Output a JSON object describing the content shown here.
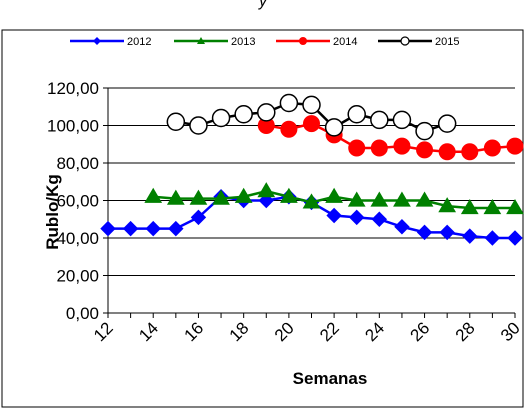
{
  "chart_data": {
    "type": "line",
    "title": "y",
    "title_note": "partially visible at top edge: \"...y ... , g...\"",
    "xlabel": "Semanas",
    "ylabel": "Rublo/Kg",
    "xlim": [
      12,
      30
    ],
    "ylim": [
      0,
      120
    ],
    "x_ticks": [
      12,
      14,
      16,
      18,
      20,
      22,
      24,
      26,
      28,
      30
    ],
    "x_tick_labels": [
      "12",
      "14",
      "16",
      "18",
      "20",
      "22",
      "24",
      "26",
      "28",
      "30"
    ],
    "y_ticks": [
      0,
      20,
      40,
      60,
      80,
      100,
      120
    ],
    "y_tick_labels": [
      "0,00",
      "20,00",
      "40,00",
      "60,00",
      "80,00",
      "100,00",
      "120,00"
    ],
    "grid": "horizontal",
    "legend_position": "top",
    "series": [
      {
        "name": "2012",
        "color": "#0000FF",
        "marker": "diamond",
        "x": [
          12,
          13,
          14,
          15,
          16,
          17,
          18,
          19,
          20,
          21,
          22,
          23,
          24,
          25,
          26,
          27,
          28,
          29,
          30
        ],
        "y": [
          45,
          45,
          45,
          45,
          51,
          62,
          60,
          60,
          62,
          59,
          52,
          51,
          50,
          46,
          43,
          43,
          41,
          40,
          40
        ]
      },
      {
        "name": "2013",
        "color": "#008000",
        "marker": "triangle",
        "x": [
          14,
          15,
          16,
          17,
          18,
          19,
          20,
          21,
          22,
          23,
          24,
          25,
          26,
          27,
          28,
          29,
          30
        ],
        "y": [
          62,
          61,
          61,
          61,
          62,
          65,
          62,
          59,
          62,
          60,
          60,
          60,
          60,
          57,
          56,
          56,
          56
        ]
      },
      {
        "name": "2014",
        "color": "#FF0000",
        "marker": "circle",
        "x": [
          19,
          20,
          21,
          22,
          23,
          24,
          25,
          26,
          27,
          28,
          29,
          30
        ],
        "y": [
          100,
          98,
          101,
          95,
          88,
          88,
          89,
          87,
          86,
          86,
          88,
          89
        ]
      },
      {
        "name": "2015",
        "color": "#000000",
        "marker": "open-circle",
        "x": [
          15,
          16,
          17,
          18,
          19,
          20,
          21,
          22,
          23,
          24,
          25,
          26,
          27
        ],
        "y": [
          102,
          100,
          104,
          106,
          107,
          112,
          111,
          99,
          106,
          103,
          103,
          97,
          101
        ]
      }
    ]
  }
}
